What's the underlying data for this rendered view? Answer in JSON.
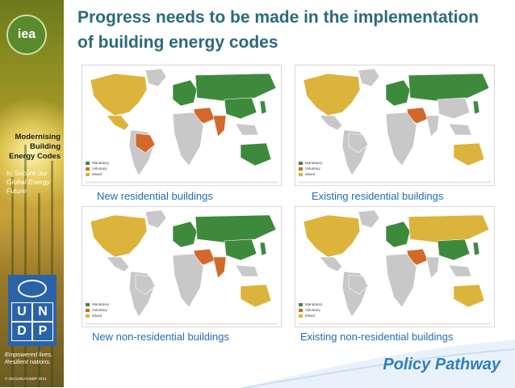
{
  "header": {
    "title": "Progress needs to be made in the implementation of building energy codes"
  },
  "sidebar": {
    "logo_text": "iea",
    "series_title": [
      "Modernising",
      "Building",
      "Energy Codes"
    ],
    "series_subtitle": [
      "to Secure our",
      "Global Energy",
      "Future"
    ],
    "undp_letters": [
      "U",
      "N",
      "D",
      "P"
    ],
    "tagline": [
      "Empowered lives.",
      "Resilient nations."
    ],
    "copyright": "© OECD/IEA/UNDP 2013"
  },
  "legend": {
    "mandatory": "Mandatory",
    "voluntary": "Voluntary",
    "mixed": "Mixed"
  },
  "colors": {
    "mandatory": "#3d8a3d",
    "voluntary": "#d2692a",
    "mixed": "#dcb43c",
    "none": "#c8c8c8",
    "title": "#2b6a7a",
    "caption": "#1f6cb5"
  },
  "maps": [
    {
      "caption": "New residential buildings",
      "regions": {
        "na": "mixed",
        "mx": "mixed",
        "sa": "none",
        "br": "voluntary",
        "eu": "mandatory",
        "ru": "mandatory",
        "af": "none",
        "me": "voluntary",
        "in": "voluntary",
        "cn": "mandatory",
        "sea": "none",
        "au": "mandatory",
        "gl": "none",
        "jp": "mandatory"
      }
    },
    {
      "caption": "Existing residential buildings",
      "regions": {
        "na": "mixed",
        "mx": "none",
        "sa": "none",
        "br": "none",
        "eu": "mandatory",
        "ru": "mandatory",
        "af": "none",
        "me": "voluntary",
        "in": "none",
        "cn": "none",
        "sea": "none",
        "au": "mixed",
        "gl": "none",
        "jp": "mandatory"
      }
    },
    {
      "caption": "New non-residential buildings",
      "regions": {
        "na": "mixed",
        "mx": "none",
        "sa": "none",
        "br": "none",
        "eu": "mandatory",
        "ru": "mandatory",
        "af": "none",
        "me": "voluntary",
        "in": "voluntary",
        "cn": "mandatory",
        "sea": "none",
        "au": "mixed",
        "gl": "none",
        "jp": "mandatory"
      }
    },
    {
      "caption": "Existing non-residential buildings",
      "regions": {
        "na": "mixed",
        "mx": "none",
        "sa": "none",
        "br": "none",
        "eu": "mandatory",
        "ru": "mixed",
        "af": "none",
        "me": "voluntary",
        "in": "none",
        "cn": "mandatory",
        "sea": "none",
        "au": "mixed",
        "gl": "none",
        "jp": "mandatory"
      }
    }
  ],
  "footer": {
    "brand": "Policy Pathway"
  }
}
